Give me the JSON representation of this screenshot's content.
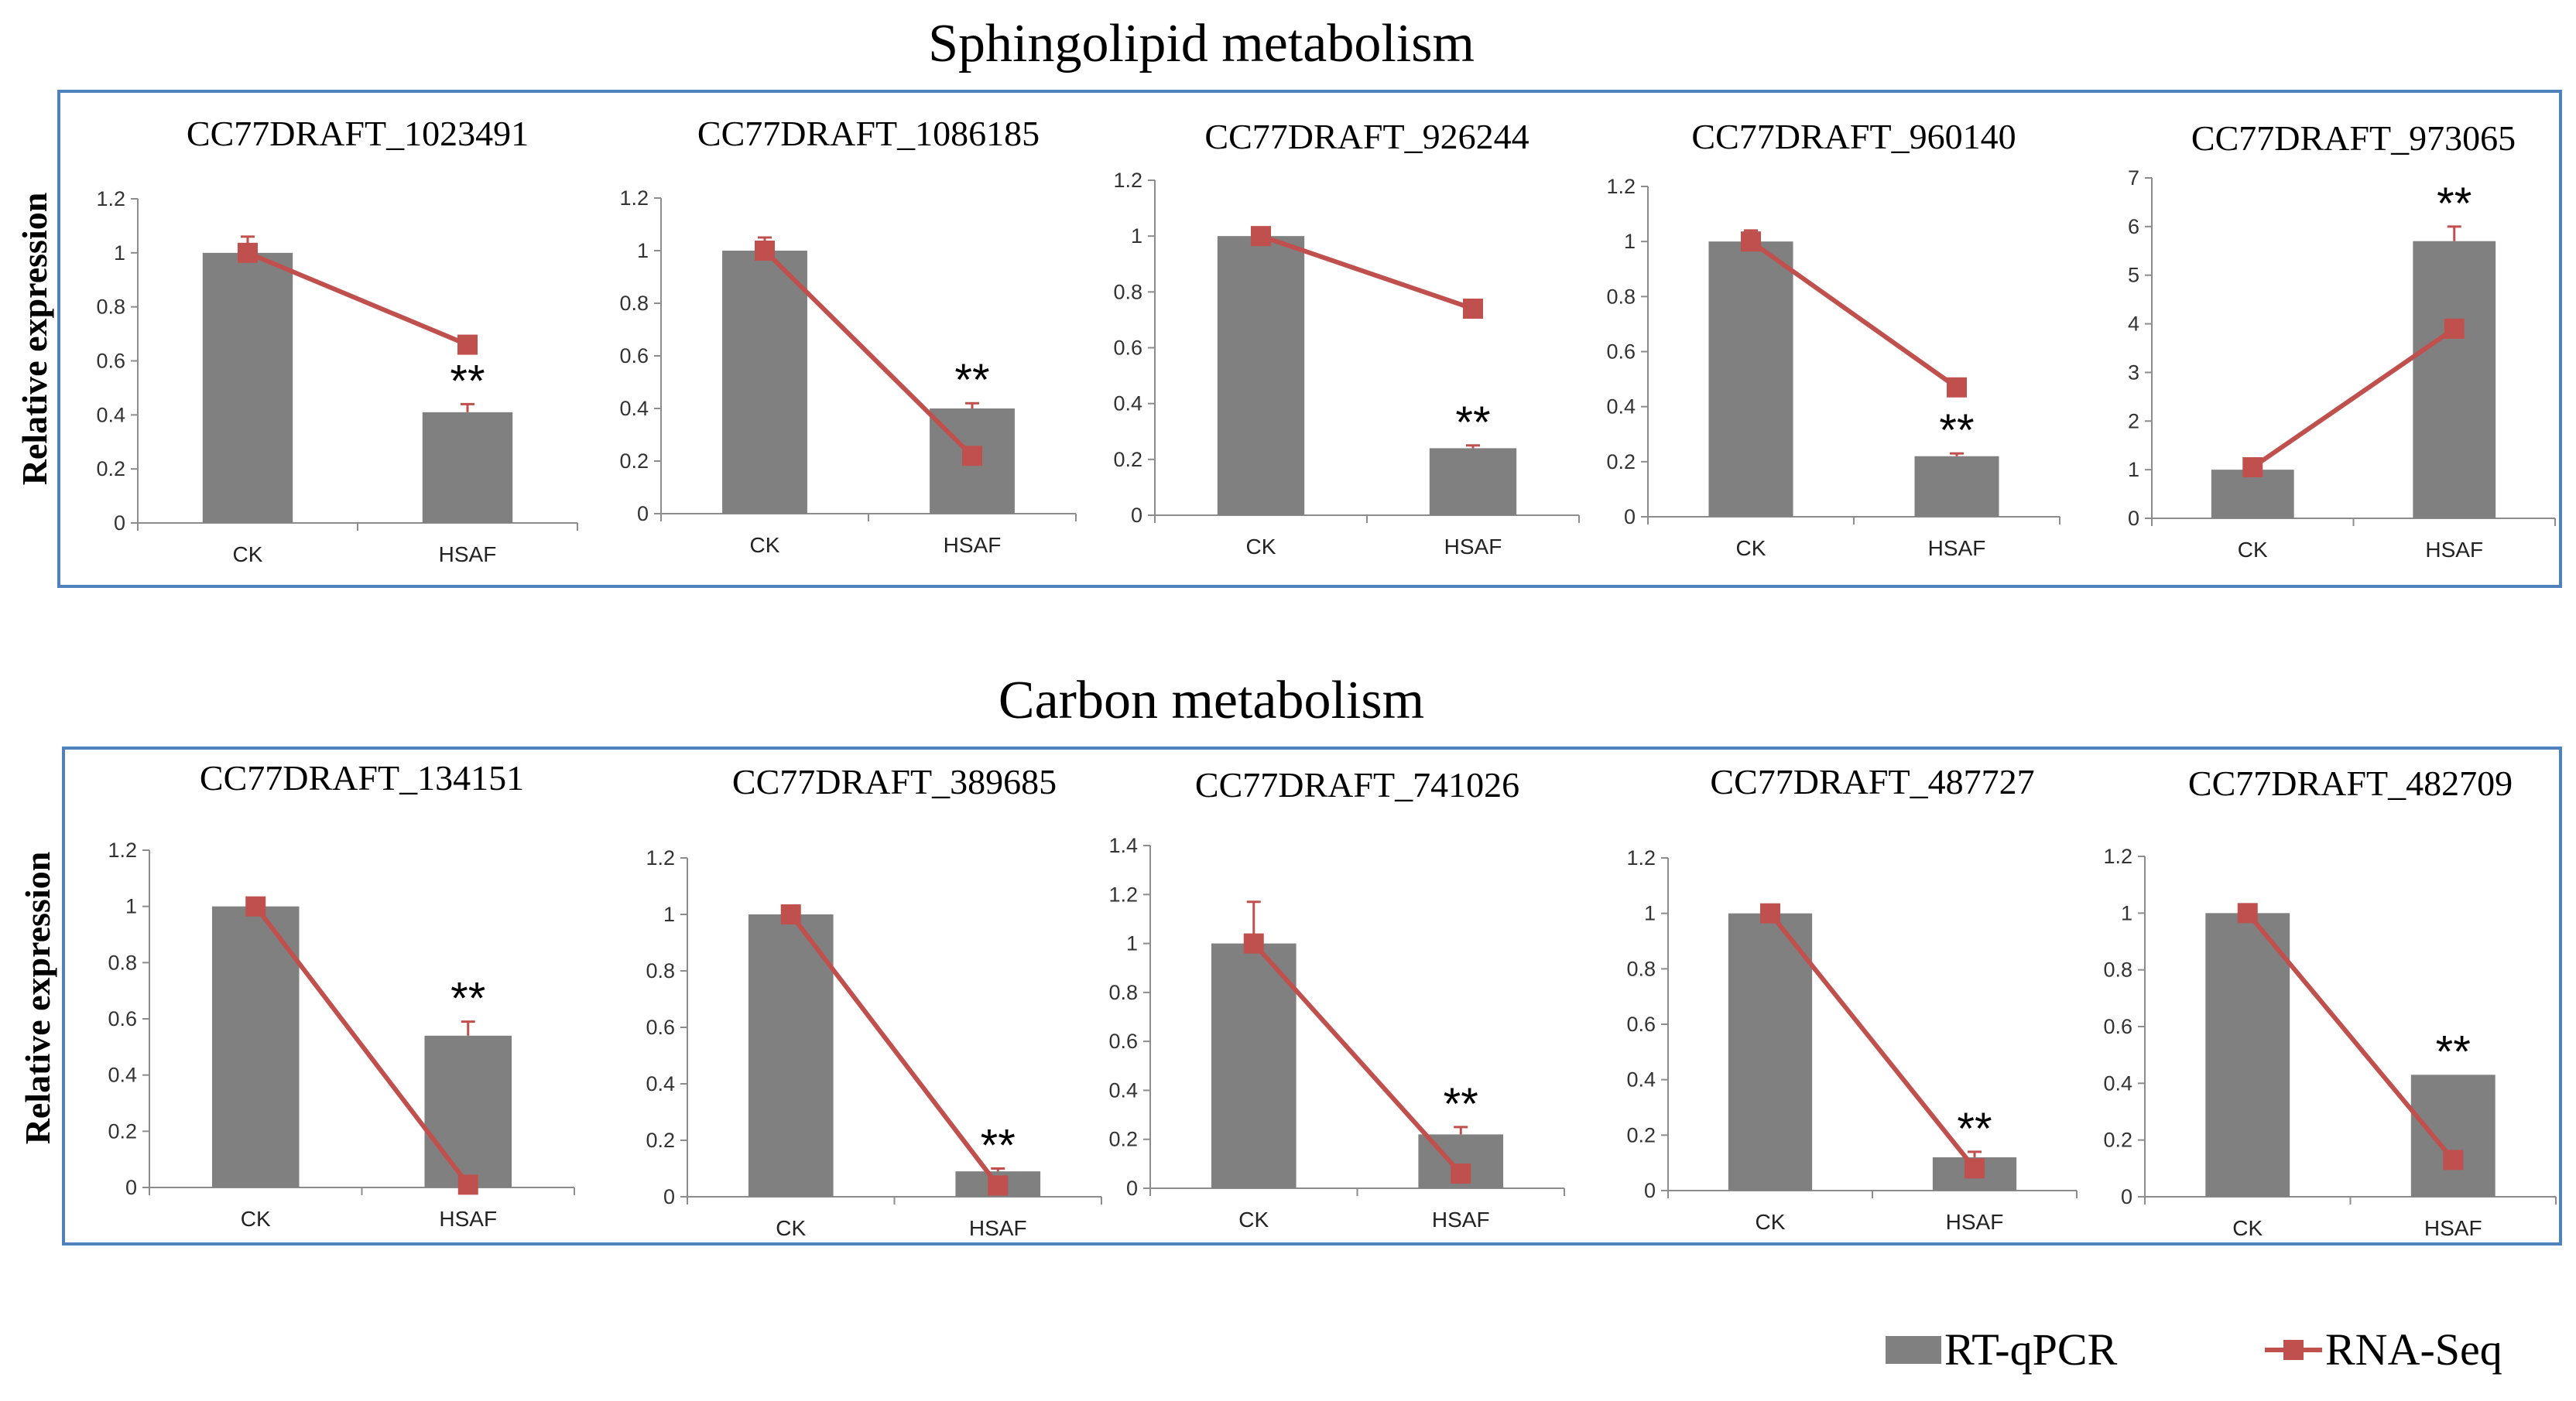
{
  "colors": {
    "bar": "#808080",
    "line": "#c0504d",
    "frame": "#4f81bd",
    "axis": "#8c8c8c"
  },
  "legend": {
    "bar_label": "RT-qPCR",
    "line_label": "RNA-Seq"
  },
  "sections": [
    {
      "title": "Sphingolipid metabolism",
      "ylabel": "Relative expression"
    },
    {
      "title": "Carbon metabolism",
      "ylabel": "Relative expression"
    }
  ],
  "chart_data": [
    {
      "type": "bar",
      "section": 0,
      "title": "CC77DRAFT_1023491",
      "categories": [
        "CK",
        "HSAF"
      ],
      "yticks": [
        "0",
        "0.2",
        "0.4",
        "0.6",
        "0.8",
        "1",
        "1.2"
      ],
      "ylim": [
        0,
        1.2
      ],
      "series": [
        {
          "name": "RT-qPCR",
          "values": [
            1.0,
            0.41
          ],
          "errors": [
            0.06,
            0.03
          ]
        },
        {
          "name": "RNA-Seq",
          "values": [
            1.0,
            0.66
          ]
        }
      ],
      "annotation": {
        "category": "HSAF",
        "text": "**"
      }
    },
    {
      "type": "bar",
      "section": 0,
      "title": "CC77DRAFT_1086185",
      "categories": [
        "CK",
        "HSAF"
      ],
      "yticks": [
        "0",
        "0.2",
        "0.4",
        "0.6",
        "0.8",
        "1",
        "1.2"
      ],
      "ylim": [
        0,
        1.2
      ],
      "series": [
        {
          "name": "RT-qPCR",
          "values": [
            1.0,
            0.4
          ],
          "errors": [
            0.05,
            0.02
          ]
        },
        {
          "name": "RNA-Seq",
          "values": [
            1.0,
            0.22
          ]
        }
      ],
      "annotation": {
        "category": "HSAF",
        "text": "**"
      }
    },
    {
      "type": "bar",
      "section": 0,
      "title": "CC77DRAFT_926244",
      "categories": [
        "CK",
        "HSAF"
      ],
      "yticks": [
        "0",
        "0.2",
        "0.4",
        "0.6",
        "0.8",
        "1",
        "1.2"
      ],
      "ylim": [
        0,
        1.2
      ],
      "series": [
        {
          "name": "RT-qPCR",
          "values": [
            1.0,
            0.24
          ],
          "errors": [
            0.01,
            0.01
          ]
        },
        {
          "name": "RNA-Seq",
          "values": [
            1.0,
            0.74
          ]
        }
      ],
      "annotation": {
        "category": "HSAF",
        "text": "**"
      }
    },
    {
      "type": "bar",
      "section": 0,
      "title": "CC77DRAFT_960140",
      "categories": [
        "CK",
        "HSAF"
      ],
      "yticks": [
        "0",
        "0.2",
        "0.4",
        "0.6",
        "0.8",
        "1",
        "1.2"
      ],
      "ylim": [
        0,
        1.2
      ],
      "series": [
        {
          "name": "RT-qPCR",
          "values": [
            1.0,
            0.22
          ],
          "errors": [
            0.04,
            0.01
          ]
        },
        {
          "name": "RNA-Seq",
          "values": [
            1.0,
            0.47
          ]
        }
      ],
      "annotation": {
        "category": "HSAF",
        "text": "**"
      }
    },
    {
      "type": "bar",
      "section": 0,
      "title": "CC77DRAFT_973065",
      "categories": [
        "CK",
        "HSAF"
      ],
      "yticks": [
        "0",
        "1",
        "2",
        "3",
        "4",
        "5",
        "6",
        "7"
      ],
      "ylim": [
        0,
        7
      ],
      "series": [
        {
          "name": "RT-qPCR",
          "values": [
            1.0,
            5.7
          ],
          "errors": [
            0.03,
            0.3
          ]
        },
        {
          "name": "RNA-Seq",
          "values": [
            1.05,
            3.9
          ]
        }
      ],
      "annotation": {
        "category": "HSAF",
        "text": "**"
      }
    },
    {
      "type": "bar",
      "section": 1,
      "title": "CC77DRAFT_134151",
      "categories": [
        "CK",
        "HSAF"
      ],
      "yticks": [
        "0",
        "0.2",
        "0.4",
        "0.6",
        "0.8",
        "1",
        "1.2"
      ],
      "ylim": [
        0,
        1.2
      ],
      "series": [
        {
          "name": "RT-qPCR",
          "values": [
            1.0,
            0.54
          ],
          "errors": [
            0.03,
            0.05
          ]
        },
        {
          "name": "RNA-Seq",
          "values": [
            1.0,
            0.01
          ]
        }
      ],
      "annotation": {
        "category": "HSAF",
        "text": "**"
      }
    },
    {
      "type": "bar",
      "section": 1,
      "title": "CC77DRAFT_389685",
      "categories": [
        "CK",
        "HSAF"
      ],
      "yticks": [
        "0",
        "0.2",
        "0.4",
        "0.6",
        "0.8",
        "1",
        "1.2"
      ],
      "ylim": [
        0,
        1.2
      ],
      "series": [
        {
          "name": "RT-qPCR",
          "values": [
            1.0,
            0.09
          ],
          "errors": [
            0.0,
            0.01
          ]
        },
        {
          "name": "RNA-Seq",
          "values": [
            1.0,
            0.04
          ]
        }
      ],
      "annotation": {
        "category": "HSAF",
        "text": "**"
      }
    },
    {
      "type": "bar",
      "section": 1,
      "title": "CC77DRAFT_741026",
      "categories": [
        "CK",
        "HSAF"
      ],
      "yticks": [
        "0",
        "0.2",
        "0.4",
        "0.6",
        "0.8",
        "1",
        "1.2",
        "1.4"
      ],
      "ylim": [
        0,
        1.4
      ],
      "series": [
        {
          "name": "RT-qPCR",
          "values": [
            1.0,
            0.22
          ],
          "errors": [
            0.17,
            0.03
          ]
        },
        {
          "name": "RNA-Seq",
          "values": [
            1.0,
            0.06
          ]
        }
      ],
      "annotation": {
        "category": "HSAF",
        "text": "**"
      }
    },
    {
      "type": "bar",
      "section": 1,
      "title": "CC77DRAFT_487727",
      "categories": [
        "CK",
        "HSAF"
      ],
      "yticks": [
        "0",
        "0.2",
        "0.4",
        "0.6",
        "0.8",
        "1",
        "1.2"
      ],
      "ylim": [
        0,
        1.2
      ],
      "series": [
        {
          "name": "RT-qPCR",
          "values": [
            1.0,
            0.12
          ],
          "errors": [
            0.0,
            0.02
          ]
        },
        {
          "name": "RNA-Seq",
          "values": [
            1.0,
            0.08
          ]
        }
      ],
      "annotation": {
        "category": "HSAF",
        "text": "**"
      }
    },
    {
      "type": "bar",
      "section": 1,
      "title": "CC77DRAFT_482709",
      "categories": [
        "CK",
        "HSAF"
      ],
      "yticks": [
        "0",
        "0.2",
        "0.4",
        "0.6",
        "0.8",
        "1",
        "1.2"
      ],
      "ylim": [
        0,
        1.2
      ],
      "series": [
        {
          "name": "RT-qPCR",
          "values": [
            1.0,
            0.43
          ],
          "errors": [
            0.0,
            0.0
          ]
        },
        {
          "name": "RNA-Seq",
          "values": [
            1.0,
            0.13
          ]
        }
      ],
      "annotation": {
        "category": "HSAF",
        "text": "**"
      }
    }
  ]
}
